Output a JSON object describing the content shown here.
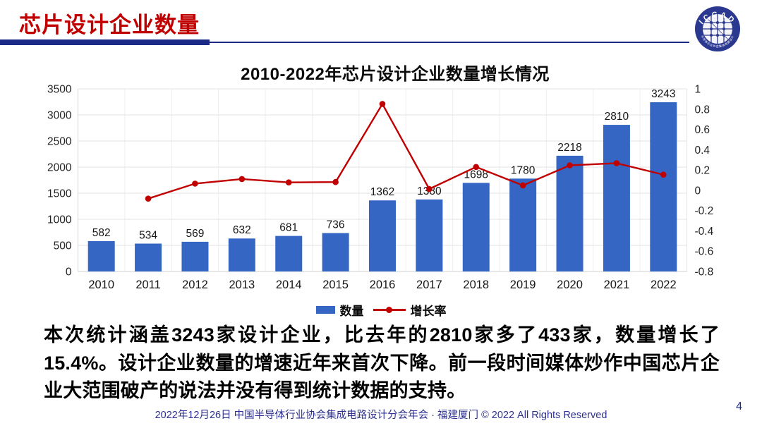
{
  "header": {
    "title": "芯片设计企业数量"
  },
  "logo": {
    "text": "ICCAD",
    "ring_text": "中国半导体行业协会集成电路设计分会"
  },
  "chart_data": {
    "type": "bar+line combo",
    "title": "2010-2022年芯片设计企业数量增长情况",
    "categories": [
      "2010",
      "2011",
      "2012",
      "2013",
      "2014",
      "2015",
      "2016",
      "2017",
      "2018",
      "2019",
      "2020",
      "2021",
      "2022"
    ],
    "series": [
      {
        "name": "数量",
        "type": "bar",
        "axis": "left",
        "color": "#3666C4",
        "values": [
          582,
          534,
          569,
          632,
          681,
          736,
          1362,
          1380,
          1698,
          1780,
          2218,
          2810,
          3243
        ]
      },
      {
        "name": "增长率",
        "type": "line",
        "axis": "right",
        "color": "#C00000",
        "values": [
          null,
          -0.082,
          0.066,
          0.111,
          0.078,
          0.081,
          0.851,
          0.013,
          0.23,
          0.048,
          0.246,
          0.267,
          0.154
        ]
      }
    ],
    "left_axis": {
      "min": 0,
      "max": 3500,
      "ticks": [
        0,
        500,
        1000,
        1500,
        2000,
        2500,
        3000,
        3500
      ]
    },
    "right_axis": {
      "min": -0.8,
      "max": 1,
      "ticks": [
        1,
        0.8,
        0.6,
        0.4,
        0.2,
        0,
        -0.2,
        -0.4,
        -0.6,
        -0.8
      ]
    },
    "grid": "on",
    "legend_position": "bottom"
  },
  "body_text": "本次统计涵盖3243家设计企业，比去年的2810家多了433家，数量增长了15.4%。设计企业数量的增速近年来首次下降。前一段时间媒体炒作中国芯片企业大范围破产的说法并没有得到统计数据的支持。",
  "footer": {
    "text": "2022年12月26日 中国半导体行业协会集成电路设计分会年会 · 福建厦门 © 2022 All Rights Reserved",
    "page": "4"
  },
  "colors": {
    "title_red": "#C00000",
    "rule_navy": "#1B2A86",
    "footer_navy": "#2E3192",
    "logo_navy": "#2A3890",
    "bar_blue": "#3666C4",
    "line_red": "#C00000"
  }
}
